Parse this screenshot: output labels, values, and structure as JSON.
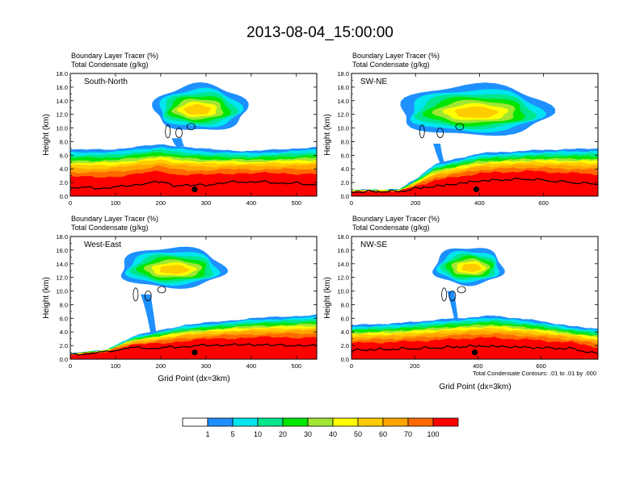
{
  "title": "2013-08-04_15:00:00",
  "colorbar": {
    "labels": [
      "1",
      "5",
      "10",
      "20",
      "30",
      "40",
      "50",
      "60",
      "70",
      "100"
    ],
    "colors": [
      "#ffffff",
      "#1e90ff",
      "#00e5ee",
      "#00e68c",
      "#00e600",
      "#a0e632",
      "#ffff00",
      "#ffcc00",
      "#ffa500",
      "#ff6a00",
      "#ff0000"
    ]
  },
  "contour_note": "Total Condensate Contours: .01 to .01 by .000",
  "chart_data": [
    {
      "type": "heatmap",
      "panel_label": "South-North",
      "header_line1": "Boundary Layer Tracer   (%)",
      "header_line2": "Total Condensate   (g/kg)",
      "ylabel": "Height (km)",
      "xlabel": "",
      "xlim": [
        0,
        545
      ],
      "ylim": [
        0,
        18
      ],
      "x_ticks": [
        0,
        100,
        200,
        300,
        400,
        500
      ],
      "y_ticks": [
        "0.0",
        "2.0",
        "4.0",
        "6.0",
        "8.0",
        "10.0",
        "12.0",
        "14.0",
        "16.0",
        "18.0"
      ],
      "marker_x": 275,
      "pbl_top_km": [
        [
          0,
          6.8
        ],
        [
          100,
          6.9
        ],
        [
          200,
          7.6
        ],
        [
          300,
          6.9
        ],
        [
          400,
          6.6
        ],
        [
          545,
          7.2
        ]
      ],
      "terrain_km": [
        [
          0,
          1.2
        ],
        [
          60,
          1.0
        ],
        [
          120,
          1.3
        ],
        [
          200,
          2.0
        ],
        [
          230,
          1.4
        ],
        [
          300,
          1.5
        ],
        [
          370,
          2.0
        ],
        [
          440,
          1.9
        ],
        [
          500,
          1.7
        ],
        [
          545,
          1.6
        ]
      ],
      "cloud_anvil": {
        "x": [
          185,
          390
        ],
        "z": [
          8.0,
          16.0
        ],
        "core_x": [
          230,
          330
        ]
      }
    },
    {
      "type": "heatmap",
      "panel_label": "SW-NE",
      "header_line1": "Boundary Layer Tracer   (%)",
      "header_line2": "Total Condensate   (g/kg)",
      "ylabel": "Height (km)",
      "xlabel": "",
      "xlim": [
        0,
        770
      ],
      "ylim": [
        0,
        18
      ],
      "x_ticks": [
        0,
        200,
        400,
        600
      ],
      "y_ticks": [
        "0.0",
        "2.0",
        "4.0",
        "6.0",
        "8.0",
        "10.0",
        "12.0",
        "14.0",
        "16.0",
        "18.0"
      ],
      "marker_x": 390,
      "pbl_top_km": [
        [
          0,
          0.9
        ],
        [
          150,
          1.0
        ],
        [
          200,
          2.5
        ],
        [
          260,
          4.7
        ],
        [
          400,
          6.3
        ],
        [
          600,
          6.8
        ],
        [
          770,
          7.0
        ]
      ],
      "terrain_km": [
        [
          0,
          0.5
        ],
        [
          160,
          0.6
        ],
        [
          200,
          1.0
        ],
        [
          300,
          1.5
        ],
        [
          400,
          2.1
        ],
        [
          550,
          2.4
        ],
        [
          650,
          2.0
        ],
        [
          770,
          1.6
        ]
      ],
      "cloud_anvil": {
        "x": [
          150,
          620
        ],
        "z": [
          7.2,
          16.0
        ],
        "core_x": [
          300,
          480
        ]
      }
    },
    {
      "type": "heatmap",
      "panel_label": "West-East",
      "header_line1": "Boundary Layer Tracer   (%)",
      "header_line2": "Total Condensate   (g/kg)",
      "ylabel": "Height (km)",
      "xlabel": "Grid Point (dx=3km)",
      "xlim": [
        0,
        545
      ],
      "ylim": [
        0,
        18
      ],
      "x_ticks": [
        0,
        100,
        200,
        300,
        400,
        500
      ],
      "y_ticks": [
        "0.0",
        "2.0",
        "4.0",
        "6.0",
        "8.0",
        "10.0",
        "12.0",
        "14.0",
        "16.0",
        "18.0"
      ],
      "marker_x": 275,
      "pbl_top_km": [
        [
          0,
          0.8
        ],
        [
          80,
          1.4
        ],
        [
          140,
          3.4
        ],
        [
          250,
          5.0
        ],
        [
          400,
          6.0
        ],
        [
          545,
          6.5
        ]
      ],
      "terrain_km": [
        [
          0,
          0.5
        ],
        [
          80,
          0.9
        ],
        [
          120,
          1.5
        ],
        [
          200,
          1.5
        ],
        [
          300,
          1.9
        ],
        [
          400,
          2.0
        ],
        [
          545,
          1.8
        ]
      ],
      "cloud_anvil": {
        "x": [
          110,
          340
        ],
        "z": [
          9.0,
          16.0
        ],
        "core_x": [
          170,
          290
        ]
      }
    },
    {
      "type": "heatmap",
      "panel_label": "NW-SE",
      "header_line1": "Boundary Layer Tracer   (%)",
      "header_line2": "Total Condensate   (g/kg)",
      "ylabel": "Height (km)",
      "xlabel": "Grid Point (dx=3km)",
      "xlim": [
        0,
        780
      ],
      "ylim": [
        0,
        18
      ],
      "x_ticks": [
        0,
        200,
        400,
        600
      ],
      "y_ticks": [
        "0.0",
        "2.0",
        "4.0",
        "6.0",
        "8.0",
        "10.0",
        "12.0",
        "14.0",
        "16.0",
        "18.0"
      ],
      "marker_x": 390,
      "pbl_top_km": [
        [
          0,
          5.0
        ],
        [
          150,
          5.3
        ],
        [
          300,
          5.9
        ],
        [
          450,
          6.4
        ],
        [
          600,
          5.6
        ],
        [
          700,
          4.8
        ],
        [
          780,
          4.5
        ]
      ],
      "terrain_km": [
        [
          0,
          1.2
        ],
        [
          100,
          1.3
        ],
        [
          250,
          1.5
        ],
        [
          400,
          1.8
        ],
        [
          550,
          1.6
        ],
        [
          700,
          1.4
        ],
        [
          780,
          0.6
        ]
      ],
      "cloud_anvil": {
        "x": [
          260,
          480
        ],
        "z": [
          9.5,
          16.0
        ],
        "core_x": [
          320,
          440
        ]
      }
    }
  ]
}
